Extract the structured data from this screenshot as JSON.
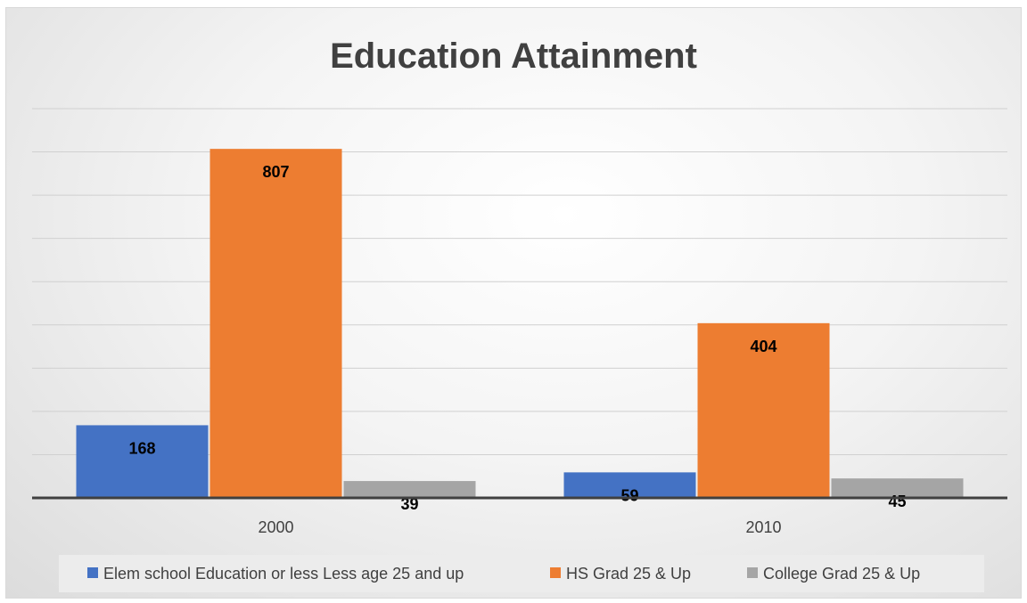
{
  "chart_data": {
    "type": "bar",
    "title": "Education Attainment",
    "xlabel": "",
    "ylabel": "",
    "categories": [
      "2000",
      "2010"
    ],
    "series": [
      {
        "name": "Elem school Education or less Less age 25 and up",
        "values": [
          168,
          59
        ],
        "color": "#4472C4"
      },
      {
        "name": "HS Grad 25 & Up",
        "values": [
          807,
          404
        ],
        "color": "#ED7D31"
      },
      {
        "name": "College Grad 25 & Up",
        "values": [
          39,
          45
        ],
        "color": "#A5A5A5"
      }
    ],
    "ylim": [
      0,
      900
    ],
    "y_axis_labels_shown": false,
    "grid": true,
    "data_labels": true,
    "legend_position": "bottom"
  }
}
